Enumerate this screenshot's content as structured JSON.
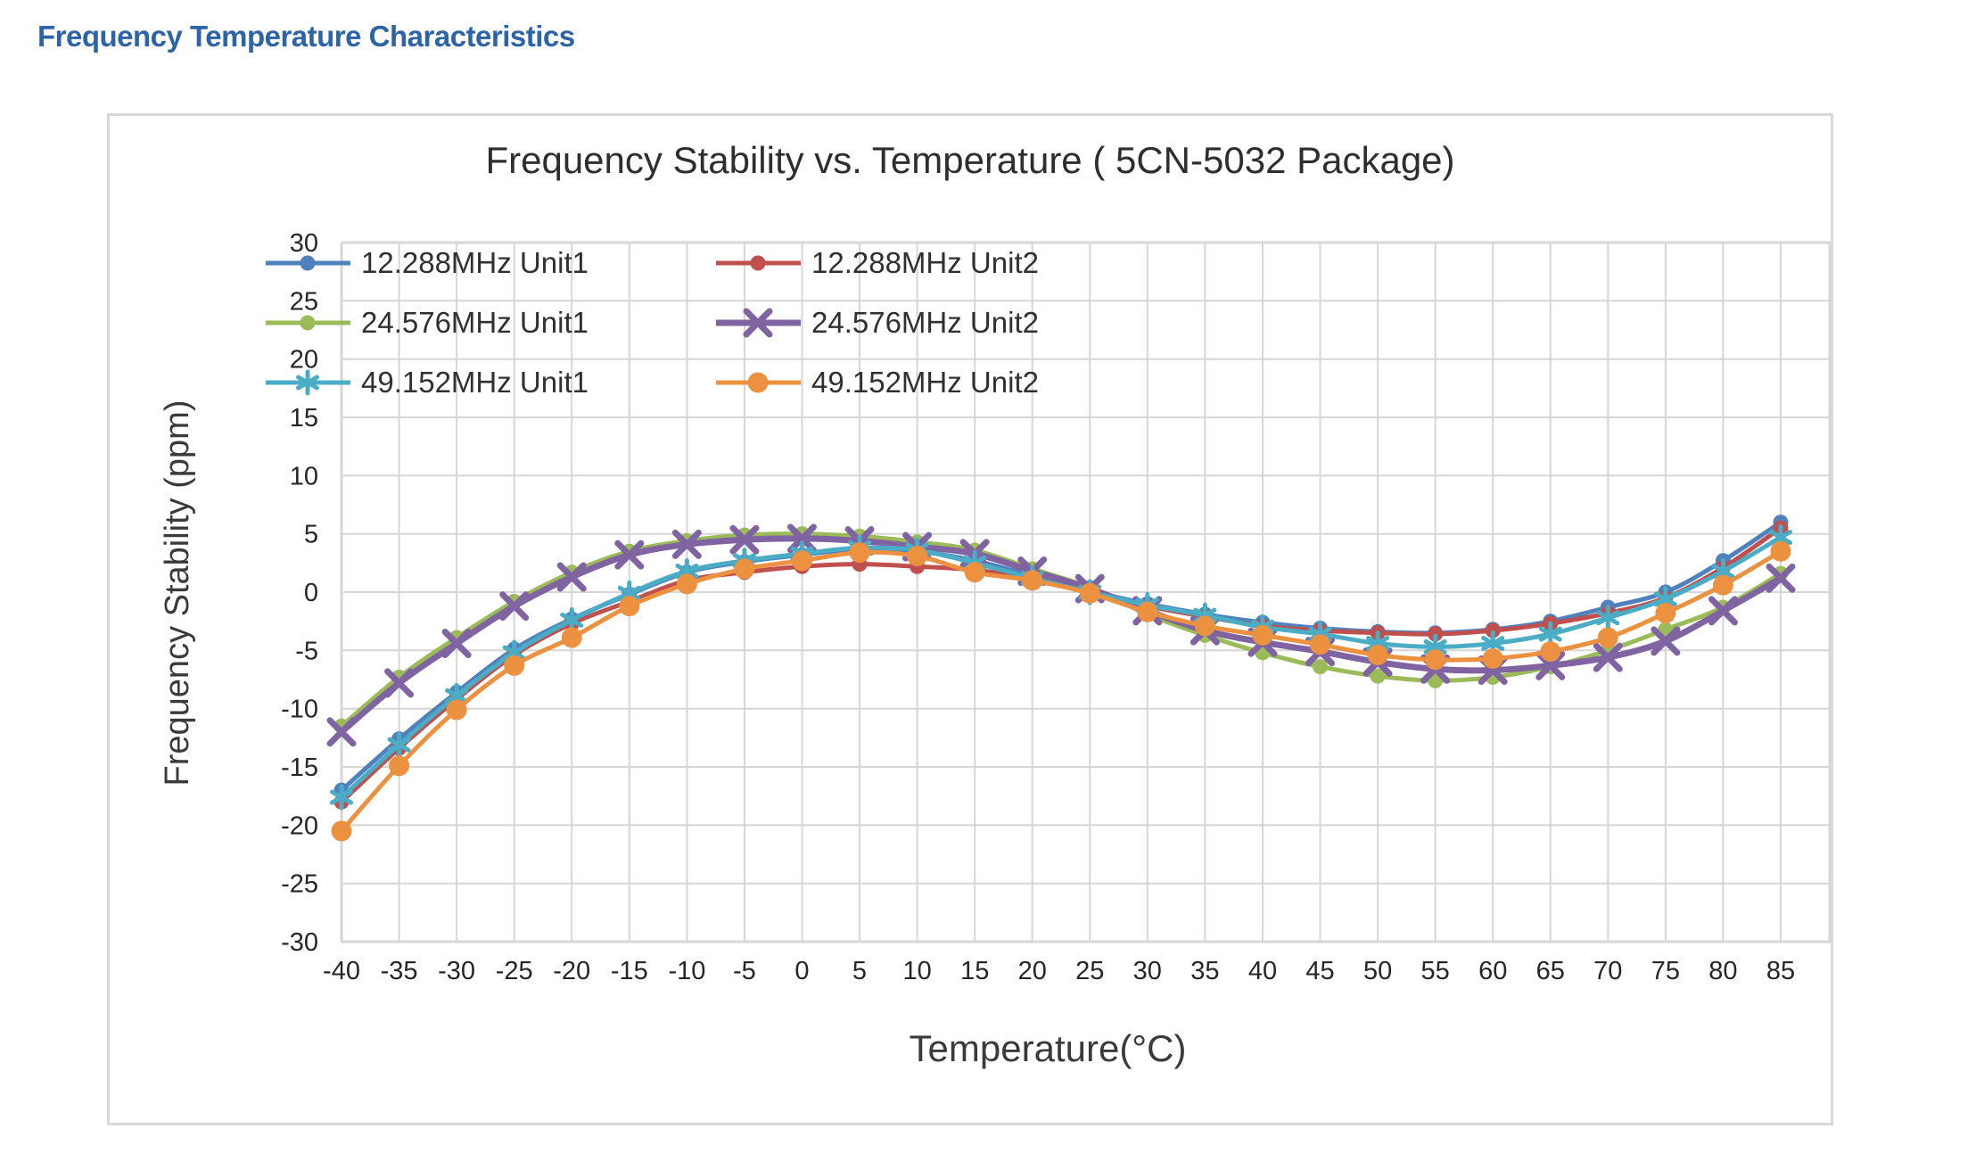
{
  "page": {
    "heading": "Frequency Temperature Characteristics"
  },
  "chart": {
    "title": "Frequency Stability vs. Temperature ( 5CN-5032 Package)",
    "x_axis_title": "Temperature(°C)",
    "y_axis_title": "Frequency Stability (ppm)"
  },
  "colors": {
    "heading": "#2C63A9",
    "panel_border": "#D9D9D9",
    "grid": "#D6D6D6",
    "tick_text": "#262626"
  },
  "chart_data": {
    "type": "line",
    "title": "Frequency Stability vs. Temperature ( 5CN-5032 Package)",
    "xlabel": "Temperature(°C)",
    "ylabel": "Frequency Stability (ppm)",
    "ylim": [
      -30,
      30
    ],
    "y_tick_step": 5,
    "grid": true,
    "line_style": "smooth",
    "legend_position": "inside-top-left",
    "x": [
      -40,
      -35,
      -30,
      -25,
      -20,
      -15,
      -10,
      -5,
      0,
      5,
      10,
      15,
      20,
      25,
      30,
      35,
      40,
      45,
      50,
      55,
      60,
      65,
      70,
      75,
      80,
      85
    ],
    "series": [
      {
        "name": "12.288MHz Unit1",
        "color": "#4F81BD",
        "marker": "circle",
        "line_width": 5,
        "values": [
          -17.0,
          -12.6,
          -8.6,
          -4.9,
          -2.3,
          -0.2,
          1.7,
          2.6,
          3.2,
          3.7,
          3.5,
          2.7,
          1.4,
          0.1,
          -1.0,
          -1.9,
          -2.6,
          -3.1,
          -3.4,
          -3.5,
          -3.2,
          -2.5,
          -1.3,
          0.0,
          2.7,
          6.0
        ]
      },
      {
        "name": "12.288MHz Unit2",
        "color": "#C0504D",
        "marker": "circle",
        "line_width": 5,
        "values": [
          -18.0,
          -13.4,
          -9.2,
          -5.4,
          -2.7,
          -0.8,
          1.0,
          1.7,
          2.2,
          2.4,
          2.2,
          1.9,
          1.2,
          0.0,
          -1.2,
          -2.1,
          -2.9,
          -3.3,
          -3.5,
          -3.6,
          -3.3,
          -2.7,
          -1.8,
          -0.5,
          2.1,
          5.5
        ]
      },
      {
        "name": "24.576MHz Unit1",
        "color": "#9BBB59",
        "marker": "circle",
        "line_width": 5,
        "values": [
          -11.5,
          -7.3,
          -3.9,
          -0.8,
          1.7,
          3.5,
          4.4,
          4.9,
          5.0,
          4.8,
          4.3,
          3.6,
          2.0,
          0.4,
          -1.9,
          -3.7,
          -5.2,
          -6.4,
          -7.2,
          -7.6,
          -7.3,
          -6.4,
          -5.0,
          -3.2,
          -1.3,
          1.6
        ]
      },
      {
        "name": "24.576MHz Unit2",
        "color": "#8064A2",
        "marker": "x",
        "line_width": 7,
        "values": [
          -12.0,
          -7.8,
          -4.4,
          -1.2,
          1.3,
          3.2,
          4.1,
          4.5,
          4.6,
          4.4,
          3.9,
          3.3,
          1.8,
          0.3,
          -1.6,
          -3.3,
          -4.3,
          -5.1,
          -6.0,
          -6.6,
          -6.7,
          -6.3,
          -5.6,
          -4.2,
          -1.6,
          1.2
        ]
      },
      {
        "name": "49.152MHz Unit1",
        "color": "#4BACC6",
        "marker": "asterisk",
        "line_width": 5,
        "values": [
          -17.6,
          -13.1,
          -8.9,
          -5.2,
          -2.4,
          -0.1,
          1.8,
          2.7,
          3.3,
          3.8,
          3.6,
          2.5,
          1.2,
          0.0,
          -1.1,
          -2.0,
          -3.0,
          -3.6,
          -4.4,
          -4.7,
          -4.4,
          -3.6,
          -2.2,
          -0.6,
          1.8,
          4.7
        ]
      },
      {
        "name": "49.152MHz Unit2",
        "color": "#EC9140",
        "marker": "circle-large",
        "line_width": 5,
        "values": [
          -20.5,
          -14.9,
          -10.1,
          -6.3,
          -3.9,
          -1.2,
          0.7,
          2.0,
          2.7,
          3.4,
          3.1,
          1.7,
          1.0,
          -0.1,
          -1.7,
          -2.9,
          -3.7,
          -4.5,
          -5.4,
          -5.8,
          -5.7,
          -5.1,
          -3.9,
          -1.8,
          0.6,
          3.5
        ]
      }
    ]
  }
}
